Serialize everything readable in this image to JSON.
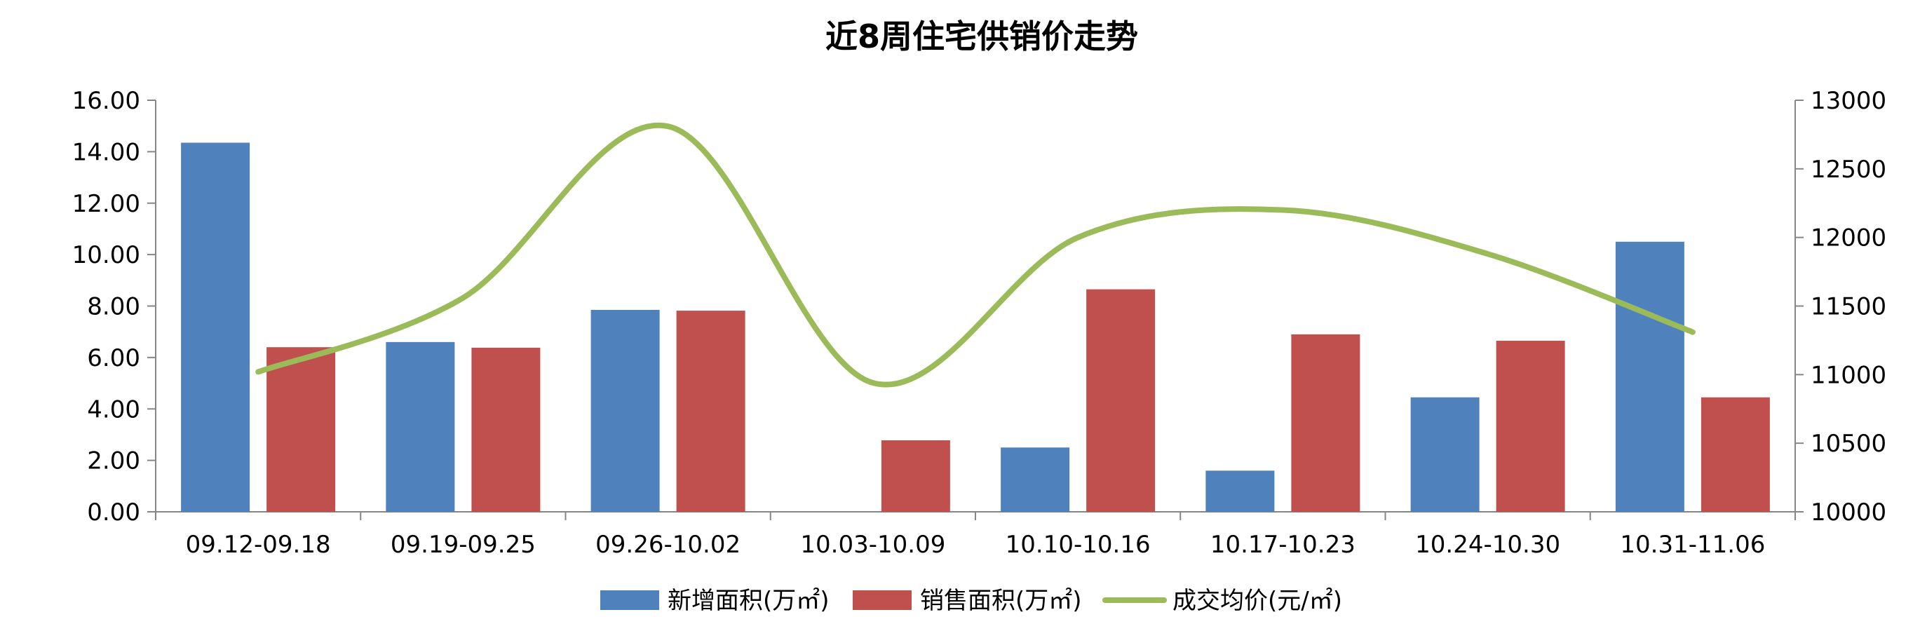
{
  "chart_data": {
    "type": "bar",
    "title": "近8周住宅供销价走势",
    "categories": [
      "09.12-09.18",
      "09.19-09.25",
      "09.26-10.02",
      "10.03-10.09",
      "10.10-10.16",
      "10.17-10.23",
      "10.24-10.30",
      "10.31-11.06"
    ],
    "y_left": {
      "range": [
        0,
        16
      ],
      "ticks": [
        "0.00",
        "2.00",
        "4.00",
        "6.00",
        "8.00",
        "10.00",
        "12.00",
        "14.00",
        "16.00"
      ]
    },
    "y_right": {
      "range": [
        10000,
        13000
      ],
      "ticks": [
        "10000",
        "10500",
        "11000",
        "11500",
        "12000",
        "12500",
        "13000"
      ]
    },
    "series": [
      {
        "name": "新增面积(万㎡)",
        "type": "bar",
        "axis": "left",
        "color": "#4F81BD",
        "values": [
          14.35,
          6.6,
          7.85,
          0,
          2.5,
          1.6,
          4.45,
          10.5
        ]
      },
      {
        "name": "销售面积(万㎡)",
        "type": "bar",
        "axis": "left",
        "color": "#C0504D",
        "values": [
          6.4,
          6.38,
          7.82,
          2.78,
          8.65,
          6.9,
          6.65,
          4.45
        ]
      },
      {
        "name": "成交均价(元/㎡)",
        "type": "line",
        "axis": "right",
        "color": "#9BBB59",
        "smooth": true,
        "values": [
          11020,
          11560,
          12810,
          10940,
          12000,
          12200,
          11880,
          11310
        ]
      }
    ],
    "legend_position": "bottom",
    "grid": false
  }
}
